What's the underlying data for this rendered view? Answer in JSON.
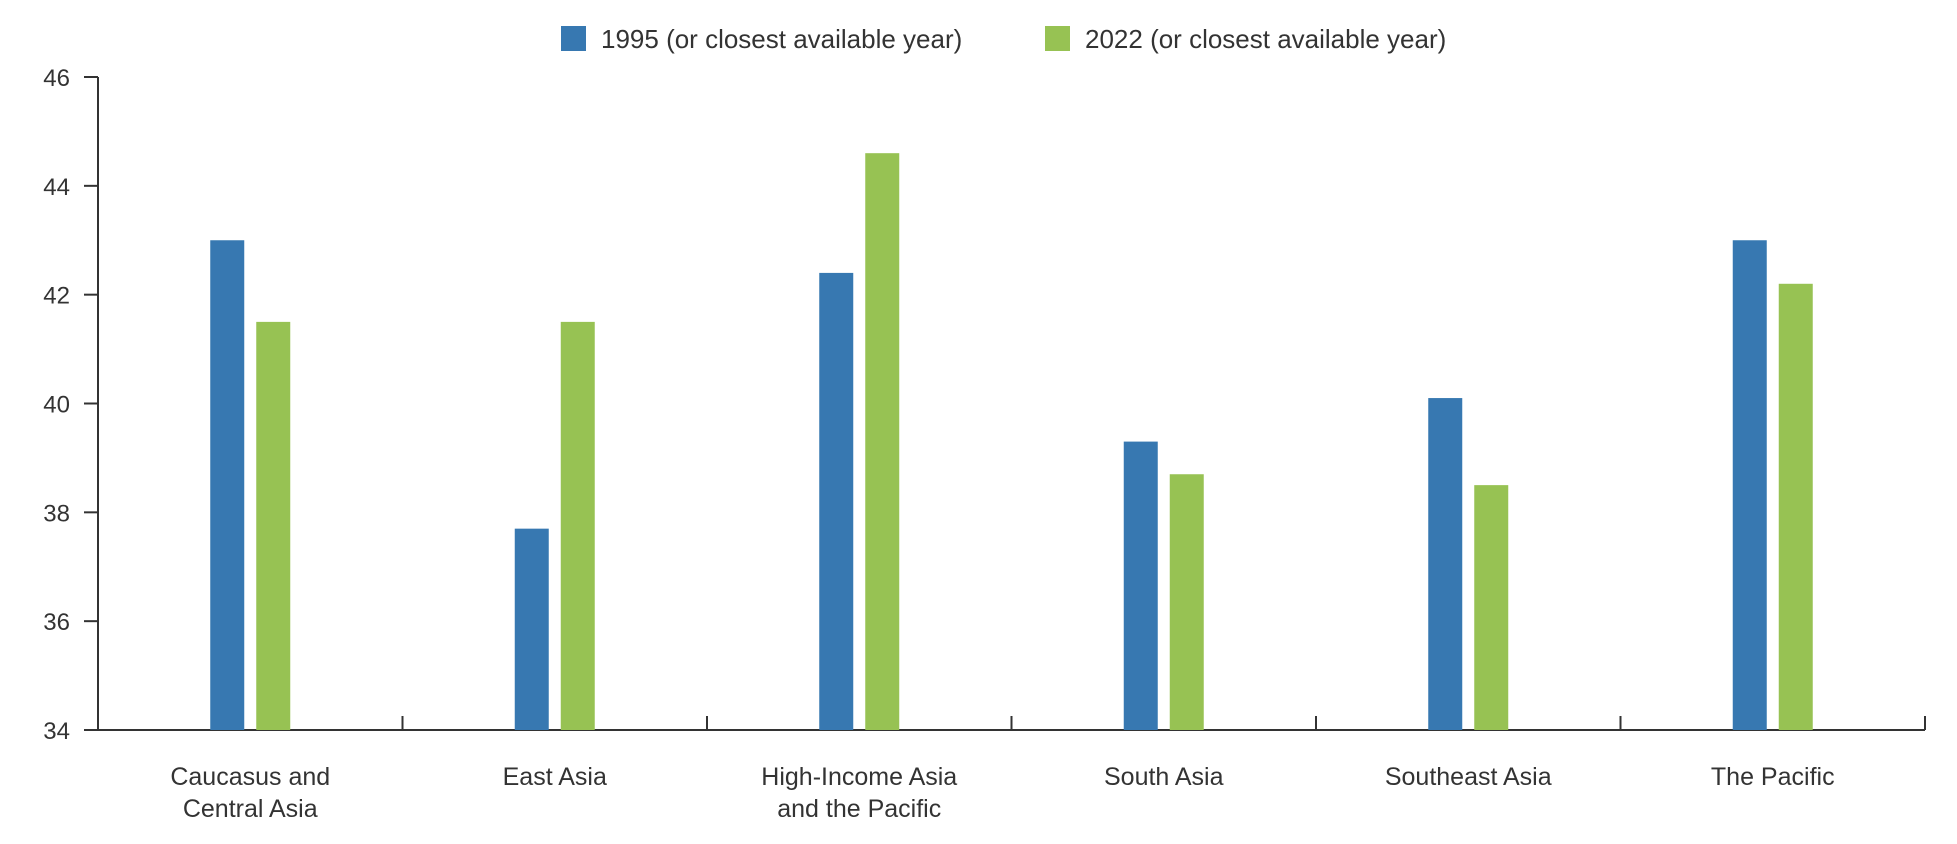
{
  "chart_data": {
    "type": "bar",
    "categories": [
      [
        "Caucasus and",
        "Central Asia"
      ],
      [
        "East Asia"
      ],
      [
        "High-Income Asia",
        "and the Pacific"
      ],
      [
        "South Asia"
      ],
      [
        "Southeast Asia"
      ],
      [
        "The Pacific"
      ]
    ],
    "series": [
      {
        "name": "1995 (or closest available year)",
        "color": "#3778B1",
        "values": [
          43.0,
          37.7,
          42.4,
          39.3,
          40.1,
          43.0
        ]
      },
      {
        "name": "2022 (or closest available year)",
        "color": "#97C253",
        "values": [
          41.5,
          41.5,
          44.6,
          38.7,
          38.5,
          42.2
        ]
      }
    ],
    "y_ticks": [
      "34",
      "36",
      "38",
      "40",
      "42",
      "44",
      "46"
    ],
    "ylim": [
      34,
      46
    ],
    "grid": false,
    "legend_position": "top-center"
  }
}
